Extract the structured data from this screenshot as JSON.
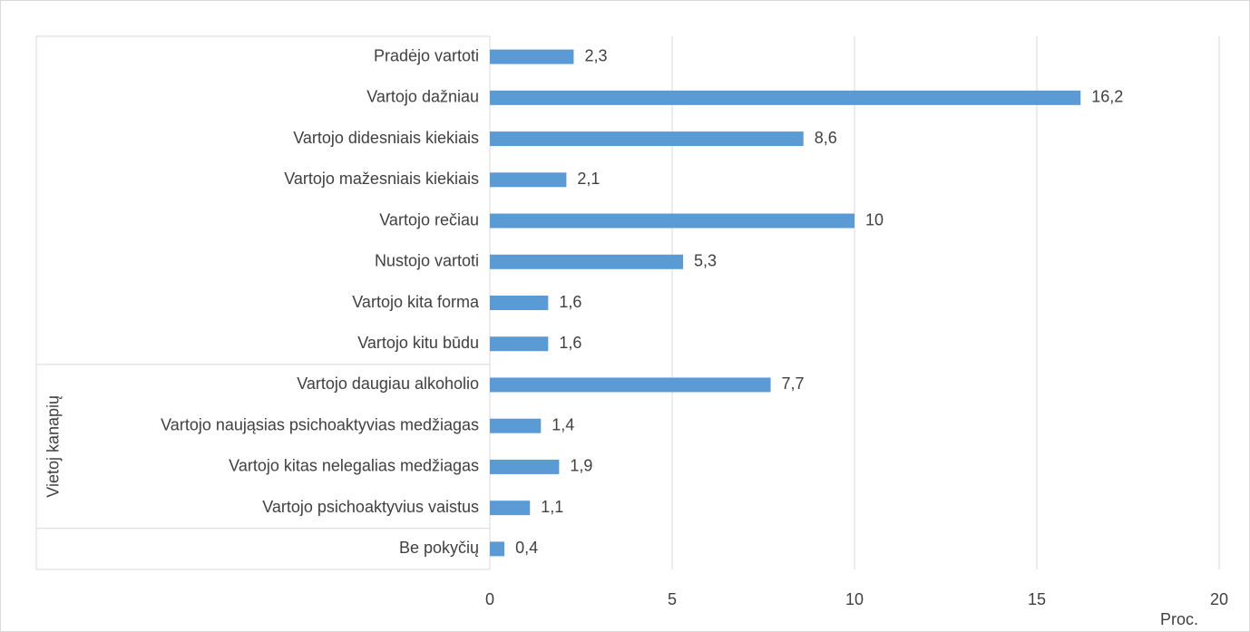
{
  "chart_data": {
    "type": "barh",
    "categories": [
      "Pradėjo vartoti",
      "Vartojo dažniau",
      "Vartojo didesniais kiekiais",
      "Vartojo mažesniais kiekiais",
      "Vartojo rečiau",
      "Nustojo vartoti",
      "Vartojo kita forma",
      "Vartojo kitu būdu",
      "Vartojo daugiau alkoholio",
      "Vartojo naująsias psichoaktyvias medžiagas",
      "Vartojo kitas nelegalias medžiagas",
      "Vartojo psichoaktyvius vaistus",
      "Be pokyčių"
    ],
    "values": [
      2.3,
      16.2,
      8.6,
      2.1,
      10,
      5.3,
      1.6,
      1.6,
      7.7,
      1.4,
      1.9,
      1.1,
      0.4
    ],
    "value_labels": [
      "2,3",
      "16,2",
      "8,6",
      "2,1",
      "10",
      "5,3",
      "1,6",
      "1,6",
      "7,7",
      "1,4",
      "1,9",
      "1,1",
      "0,4"
    ],
    "category_groups": [
      {
        "label": "Vietoj kanapių",
        "categories": [
          8,
          9,
          10,
          11
        ]
      }
    ],
    "color": "#5b9bd5",
    "xlim": [
      0,
      20
    ],
    "xticks": [
      0,
      5,
      10,
      15,
      20
    ],
    "grid": true,
    "xlabel": "Proc."
  }
}
